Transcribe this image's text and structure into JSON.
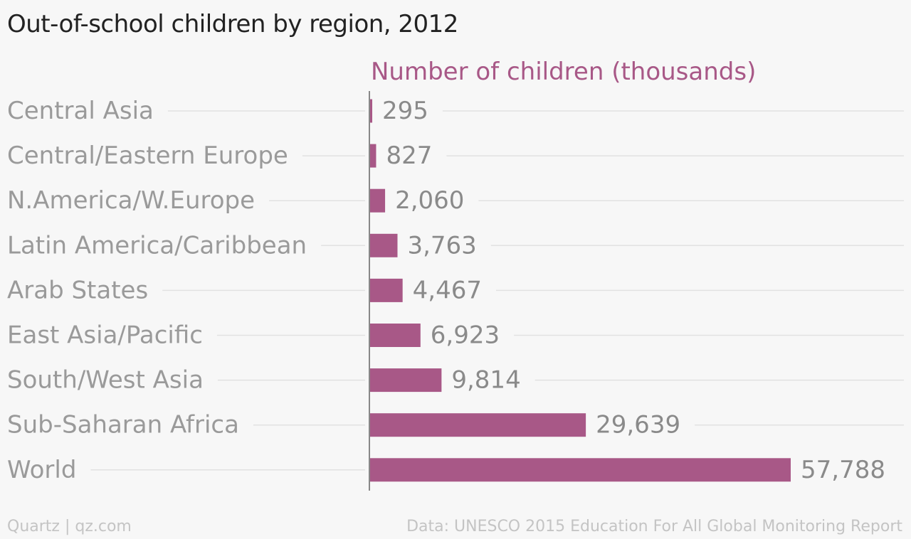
{
  "chart_data": {
    "type": "bar",
    "orientation": "horizontal",
    "title": "Out-of-school children by region, 2012",
    "value_label": "Number of children (thousands)",
    "categories": [
      "Central Asia",
      "Central/Eastern Europe",
      "N.America/W.Europe",
      "Latin America/Caribbean",
      "Arab States",
      "East Asia/Pacific",
      "South/West Asia",
      "Sub-Saharan Africa",
      "World"
    ],
    "values": [
      295,
      827,
      2060,
      3763,
      4467,
      6923,
      9814,
      29639,
      57788
    ],
    "value_labels": [
      "295",
      "827",
      "2,060",
      "3,763",
      "4,467",
      "6,923",
      "9,814",
      "29,639",
      "57,788"
    ],
    "xlim": [
      0,
      57788
    ],
    "grid": true,
    "colors": {
      "bar": "#a85887",
      "value_axis_label": "#a85887",
      "category_label": "#9a9a9a",
      "value_text": "#8a8a8a",
      "grid": "#e2e2e2",
      "axis": "#888888"
    }
  },
  "footer": {
    "source": "Quartz | qz.com",
    "data_credit": "Data: UNESCO 2015 Education For All Global Monitoring Report"
  }
}
